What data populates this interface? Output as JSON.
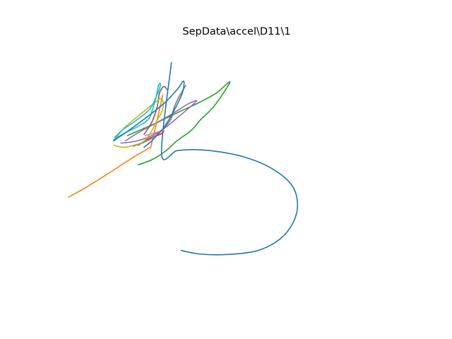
{
  "chart_data": {
    "type": "line",
    "title": "SepData\\accel\\D11\\1",
    "xlabel": "",
    "ylabel": "",
    "axes_visible": false,
    "grid": false,
    "legend": "none",
    "xlim": [
      0,
      100
    ],
    "ylim": [
      0,
      100
    ],
    "series": [
      {
        "color": "#1f77b4",
        "x": [
          35.6,
          40.6,
          47.8,
          56.3,
          62.5,
          66.7,
          68.8,
          67.2,
          61.3,
          53.8,
          46.3,
          39.6,
          34.4,
          30.0,
          32.8
        ],
        "y": [
          19.6,
          18.3,
          18.0,
          19.2,
          22.7,
          28.3,
          36.3,
          44.6,
          51.2,
          55.4,
          57.5,
          58.3,
          57.9,
          56.7,
          91.7
        ]
      },
      {
        "color": "#ff7f0e",
        "x": [
          3.4,
          7.8,
          13.8,
          19.1,
          23.1,
          26.3,
          27.2,
          30.3
        ],
        "y": [
          40.1,
          43.3,
          48.3,
          52.9,
          56.3,
          58.9,
          60.8,
          79.2
        ]
      },
      {
        "color": "#2ca02c",
        "x": [
          23.4,
          27.5,
          31.3,
          34.4,
          38.4,
          41.3,
          45.0,
          49.5,
          45.6,
          40.6,
          34.4,
          28.1,
          20.3
        ],
        "y": [
          52.5,
          54.6,
          57.9,
          61.7,
          65.6,
          70.0,
          75.0,
          84.2,
          80.0,
          76.3,
          72.4,
          68.3,
          63.7
        ]
      },
      {
        "color": "#d62728",
        "x": [
          23.4,
          25.6,
          27.8,
          29.7,
          30.6
        ],
        "y": [
          60.0,
          62.1,
          63.3,
          64.2,
          65.4
        ]
      },
      {
        "color": "#9467bd",
        "x": [
          18.4,
          22.5,
          26.6,
          30.6,
          34.4,
          38.1,
          40.0,
          37.5,
          33.1,
          28.1,
          23.1,
          19.7
        ],
        "y": [
          60.8,
          61.5,
          63.3,
          66.3,
          70.4,
          74.6,
          77.1,
          75.8,
          72.1,
          68.3,
          64.6,
          61.7
        ]
      },
      {
        "color": "#8c564b",
        "x": [
          25.0,
          27.2,
          28.8,
          29.4,
          30.6,
          31.6
        ],
        "y": [
          64.2,
          68.8,
          75.0,
          80.0,
          82.5,
          81.3
        ]
      },
      {
        "color": "#e377c2",
        "x": [
          25.3,
          27.8,
          29.7,
          30.6
        ],
        "y": [
          63.7,
          64.6,
          65.4,
          65.8
        ]
      },
      {
        "color": "#7f7f7f",
        "x": [
          21.9,
          25.3,
          28.8,
          31.3,
          32.8,
          33.4,
          34.7,
          36.9
        ],
        "y": [
          59.6,
          61.3,
          64.2,
          67.5,
          70.4,
          73.8,
          77.9,
          82.9
        ]
      },
      {
        "color": "#bcbd22",
        "x": [
          16.3,
          18.8,
          21.6,
          24.7,
          26.6,
          28.4,
          30.3,
          30.0,
          27.2,
          23.4,
          19.4,
          16.6
        ],
        "y": [
          60.0,
          59.2,
          59.8,
          61.3,
          64.2,
          68.8,
          73.8,
          77.9,
          75.4,
          71.3,
          66.7,
          62.1
        ]
      },
      {
        "color": "#17becf",
        "x": [
          16.3,
          19.4,
          23.1,
          26.3,
          27.5,
          28.4,
          29.1,
          29.7,
          28.8,
          26.6,
          22.8,
          18.8,
          16.6
        ],
        "y": [
          62.1,
          64.6,
          67.1,
          70.0,
          74.2,
          78.3,
          82.9,
          83.3,
          79.6,
          73.8,
          69.6,
          65.8,
          62.9
        ]
      },
      {
        "color": "#1f77b4",
        "x": [
          16.3,
          21.3,
          26.3,
          30.9,
          34.4,
          36.3,
          35.9,
          33.4,
          30.6,
          27.5,
          25.0
        ],
        "y": [
          61.7,
          66.3,
          71.3,
          76.3,
          81.3,
          84.6,
          80.0,
          72.9,
          66.7,
          62.1,
          59.2
        ]
      }
    ]
  }
}
